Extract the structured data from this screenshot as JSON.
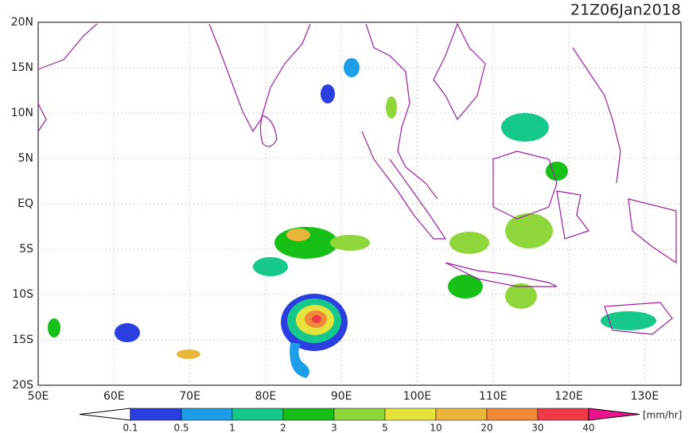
{
  "title": "21Z06Jan2018",
  "map": {
    "lat_labels": [
      "20N",
      "15N",
      "10N",
      "5N",
      "EQ",
      "5S",
      "10S",
      "15S",
      "20S"
    ],
    "lon_labels": [
      "50E",
      "60E",
      "70E",
      "80E",
      "90E",
      "100E",
      "110E",
      "120E",
      "130E"
    ]
  },
  "colorbar": {
    "labels": [
      "0.1",
      "0.5",
      "1",
      "2",
      "3",
      "5",
      "10",
      "20",
      "30",
      "40"
    ],
    "colors": [
      "#2b3ee0",
      "#1c9ee9",
      "#17c88b",
      "#17c017",
      "#8fd63a",
      "#e6e23c",
      "#e8b53a",
      "#f08a38",
      "#f03a48"
    ],
    "over_color": "#f0128c",
    "unit": "[mm/hr]"
  }
}
